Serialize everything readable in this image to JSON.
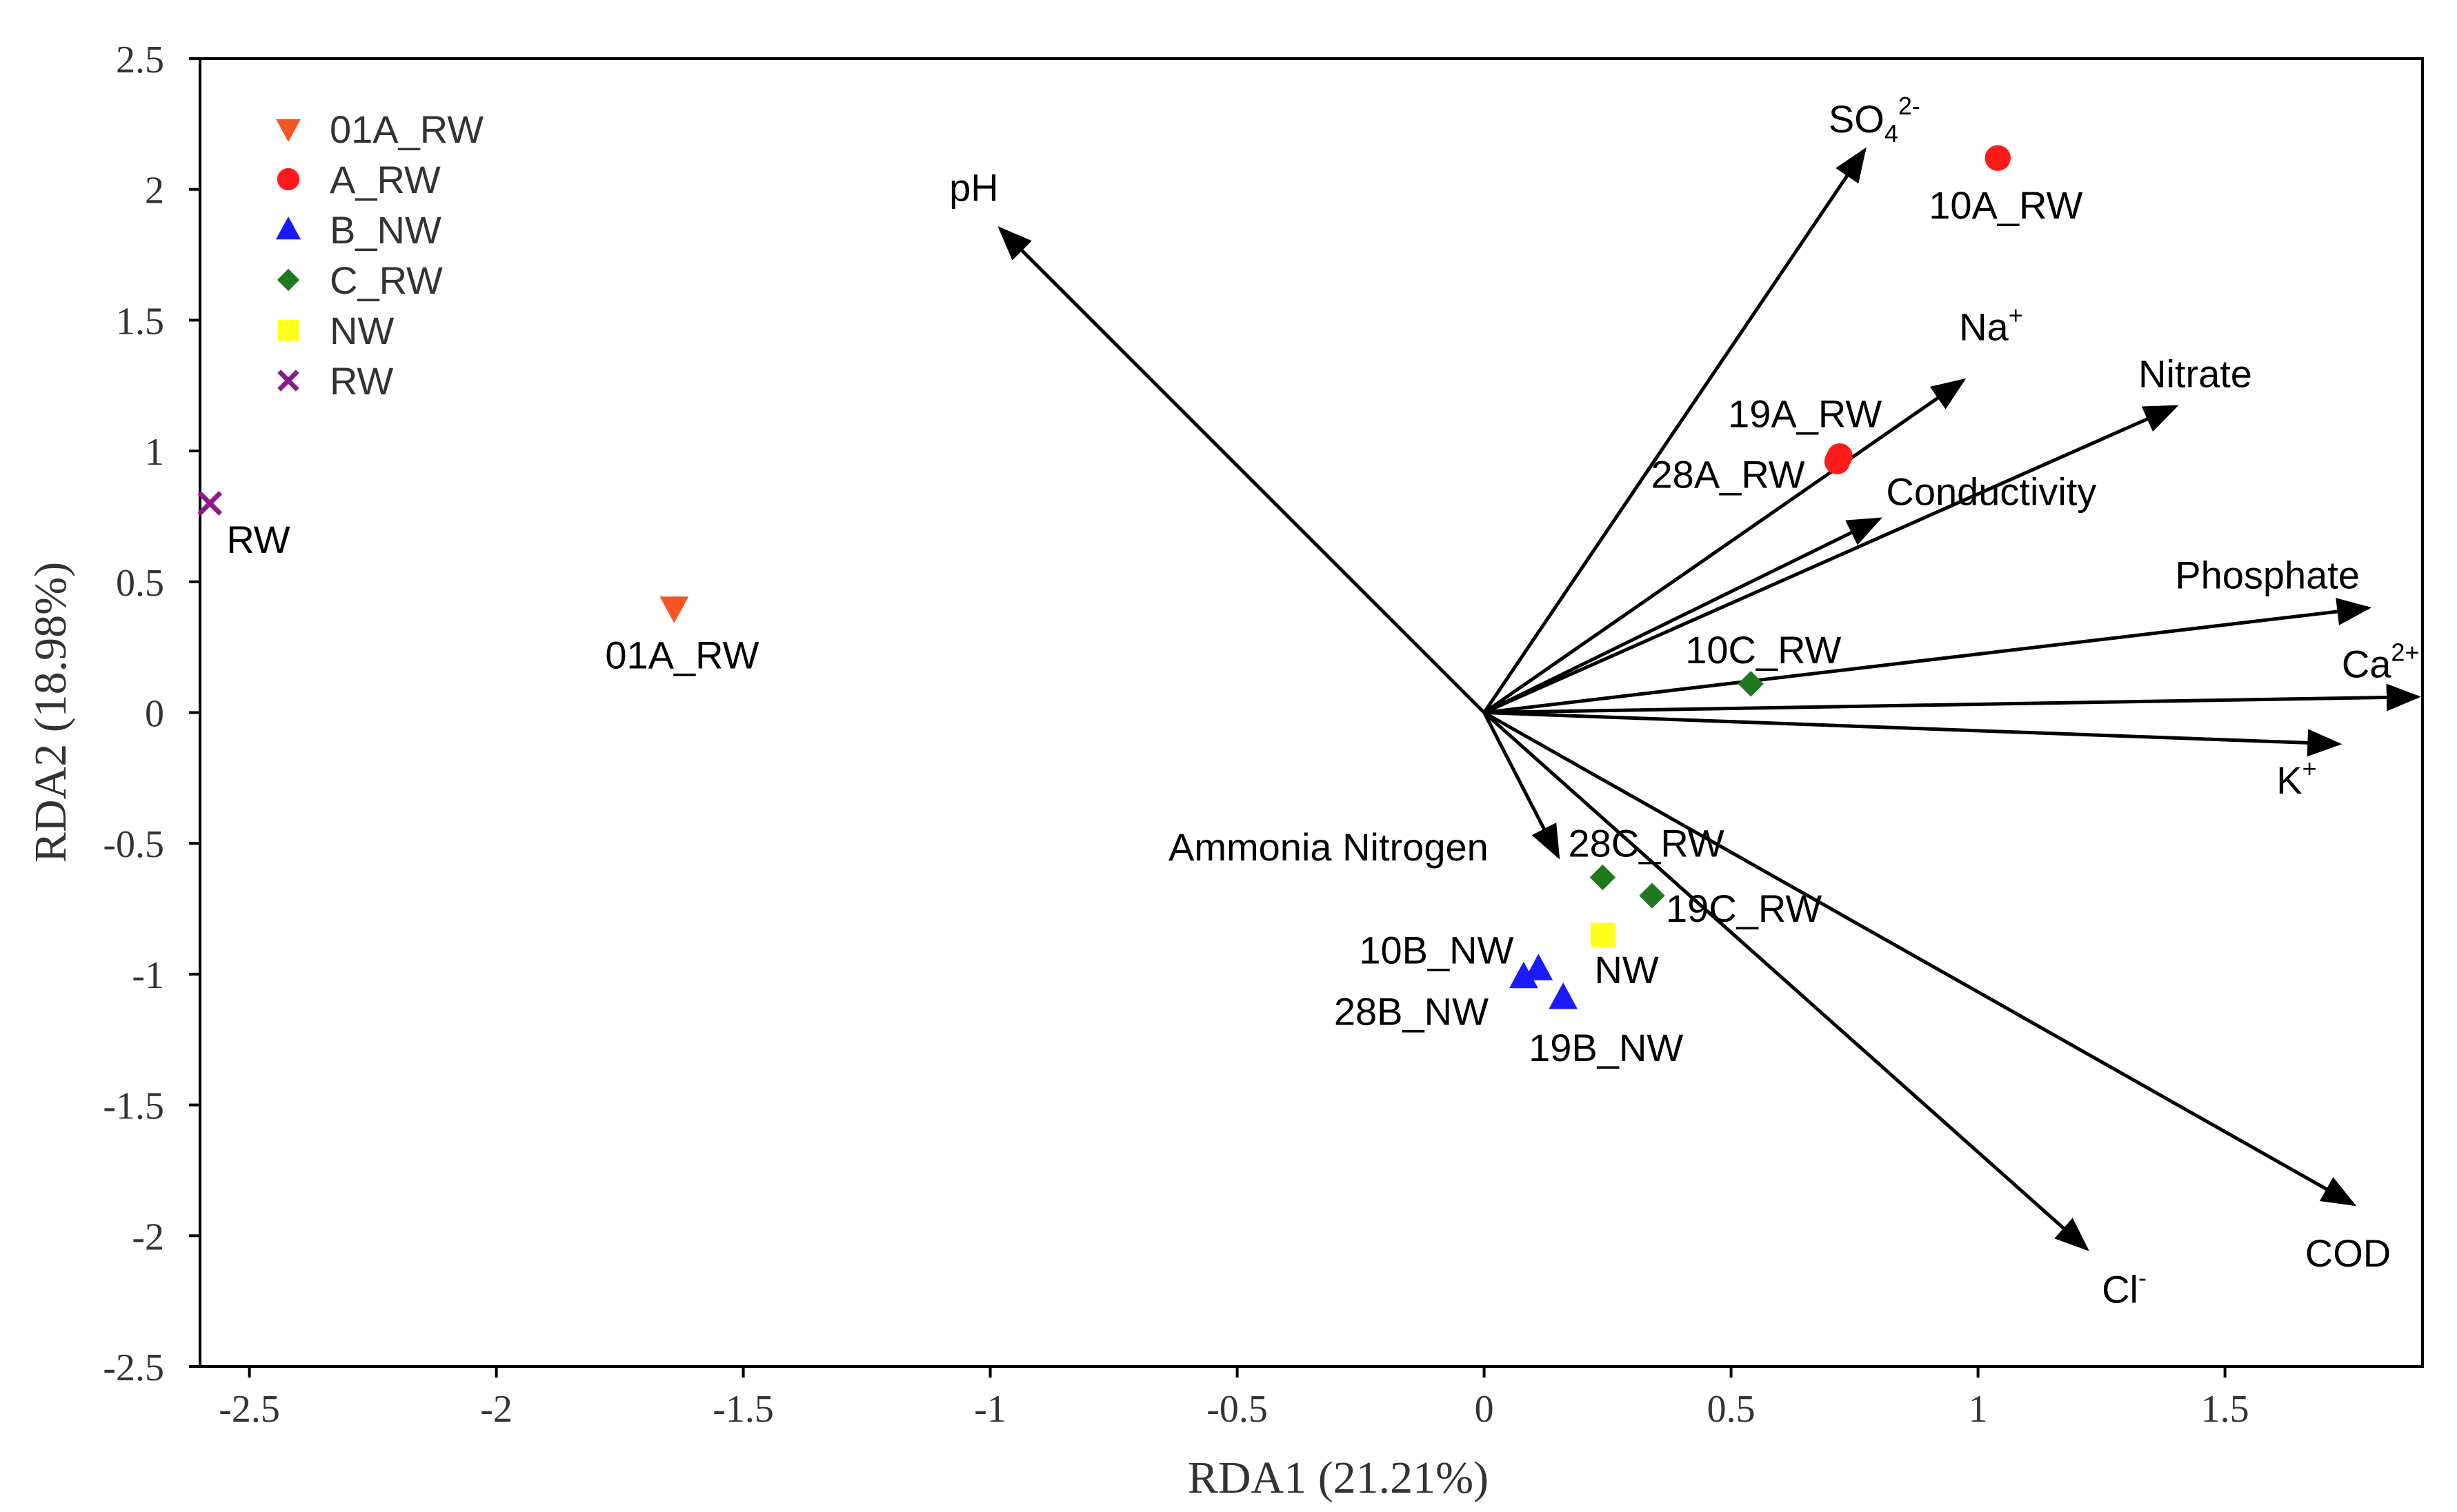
{
  "chart_data": {
    "type": "scatter",
    "title": "",
    "xlabel": "RDA1 (21.21%)",
    "ylabel": "RDA2 (18.98%)",
    "xlim": [
      -2.6,
      1.9
    ],
    "ylim": [
      -2.5,
      2.5
    ],
    "xticks": [
      {
        "v": -2.5,
        "label": "-2.5"
      },
      {
        "v": -2,
        "label": "-2"
      },
      {
        "v": -1.5,
        "label": "-1.5"
      },
      {
        "v": -1,
        "label": "-1"
      },
      {
        "v": -0.5,
        "label": "-0.5"
      },
      {
        "v": 0,
        "label": "0"
      },
      {
        "v": 0.5,
        "label": "0.5"
      },
      {
        "v": 1,
        "label": "1"
      },
      {
        "v": 1.5,
        "label": "1.5"
      }
    ],
    "yticks": [
      {
        "v": 2.5,
        "label": "2.5"
      },
      {
        "v": 2,
        "label": "2"
      },
      {
        "v": 1.5,
        "label": "1.5"
      },
      {
        "v": 1,
        "label": "1"
      },
      {
        "v": 0.5,
        "label": "0.5"
      },
      {
        "v": 0,
        "label": "0"
      },
      {
        "v": -0.5,
        "label": "-0.5"
      },
      {
        "v": -1,
        "label": "-1"
      },
      {
        "v": -1.5,
        "label": "-1.5"
      },
      {
        "v": -2,
        "label": "-2"
      },
      {
        "v": -2.5,
        "label": "-2.5"
      }
    ],
    "grid": false,
    "legend_position": "top-left",
    "series": [
      {
        "name": "01A_RW",
        "marker": "triangle-down",
        "color": "#F55423",
        "points": [
          {
            "x": -1.64,
            "y": 0.4,
            "label": "01A_RW"
          }
        ]
      },
      {
        "name": "A_RW",
        "marker": "circle",
        "color": "#FF1A1A",
        "points": [
          {
            "x": 1.04,
            "y": 2.12,
            "label": "10A_RW"
          },
          {
            "x": 0.72,
            "y": 0.98,
            "label": "19A_RW"
          },
          {
            "x": 0.715,
            "y": 0.96,
            "label": "28A_RW"
          }
        ]
      },
      {
        "name": "B_NW",
        "marker": "triangle-up",
        "color": "#1A1AFF",
        "points": [
          {
            "x": 0.11,
            "y": -0.98,
            "label": "10B_NW"
          },
          {
            "x": 0.08,
            "y": -1.01,
            "label": "28B_NW"
          },
          {
            "x": 0.16,
            "y": -1.09,
            "label": "19B_NW"
          }
        ]
      },
      {
        "name": "C_RW",
        "marker": "diamond",
        "color": "#1F7A1F",
        "points": [
          {
            "x": 0.54,
            "y": 0.11,
            "label": "10C_RW"
          },
          {
            "x": 0.24,
            "y": -0.63,
            "label": "28C_RW"
          },
          {
            "x": 0.34,
            "y": -0.7,
            "label": "19C_RW"
          }
        ]
      },
      {
        "name": "NW",
        "marker": "square",
        "color": "#FFFF1A",
        "points": [
          {
            "x": 0.24,
            "y": -0.85,
            "label": "NW"
          }
        ]
      },
      {
        "name": "RW",
        "marker": "cross",
        "color": "#8B1A8B",
        "points": [
          {
            "x": -2.58,
            "y": 0.8,
            "label": "RW"
          }
        ]
      }
    ],
    "vectors": [
      {
        "name": "pH",
        "x": -0.98,
        "y": 1.85
      },
      {
        "name": "SO42-",
        "base": "SO",
        "sub": "4",
        "sup": "2-",
        "x": 0.77,
        "y": 2.15
      },
      {
        "name": "Na+",
        "base": "Na",
        "sup": "+",
        "x": 0.97,
        "y": 1.27
      },
      {
        "name": "Nitrate",
        "x": 1.4,
        "y": 1.17
      },
      {
        "name": "Conductivity",
        "x": 0.8,
        "y": 0.74
      },
      {
        "name": "Phosphate",
        "x": 1.79,
        "y": 0.4
      },
      {
        "name": "Ca2+",
        "base": "Ca",
        "sup": "2+",
        "x": 1.89,
        "y": 0.06
      },
      {
        "name": "K+",
        "base": "K",
        "sup": "+",
        "x": 1.73,
        "y": -0.12
      },
      {
        "name": "Ammonia Nitrogen",
        "x": 0.15,
        "y": -0.55
      },
      {
        "name": "COD",
        "x": 1.76,
        "y": -1.88
      },
      {
        "name": "Cl-",
        "base": "Cl",
        "sup": "-",
        "x": 1.22,
        "y": -2.05
      }
    ]
  }
}
